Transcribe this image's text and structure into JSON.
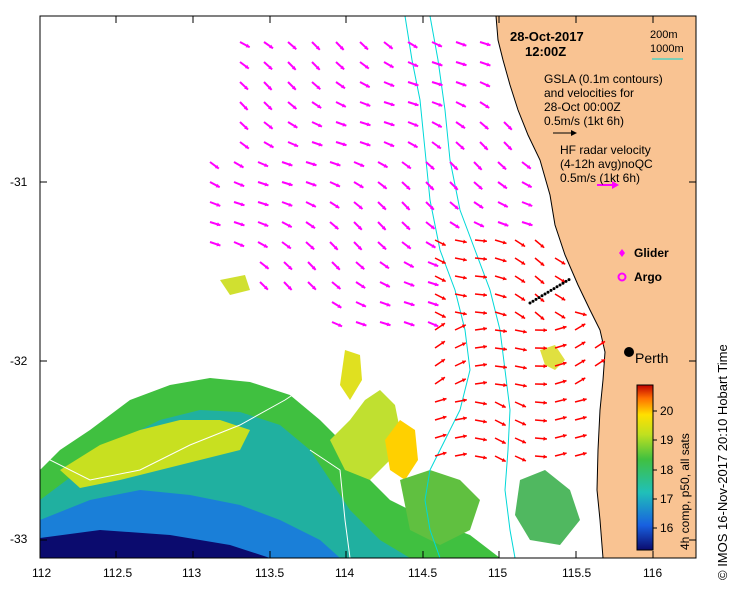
{
  "title": {
    "date": "28-Oct-2017",
    "time": "12:00Z"
  },
  "depth_legend": {
    "line1": "200m",
    "line2": "1000m"
  },
  "gsla_legend": {
    "line1": "GSLA (0.1m contours)",
    "line2": "and velocities for",
    "line3": "28-Oct 00:00Z",
    "scale": "0.5m/s (1kt 6h)"
  },
  "hf_legend": {
    "line1": "HF radar velocity",
    "line2": "(4-12h avg)noQC",
    "scale": "0.5m/s (1kt 6h)"
  },
  "glider_label": "Glider",
  "argo_label": "Argo",
  "city_label": "Perth",
  "x_ticks": [
    "112",
    "112.5",
    "113",
    "113.5",
    "114",
    "114.5",
    "115",
    "115.5",
    "116"
  ],
  "y_ticks": [
    "-31",
    "-32",
    "-33"
  ],
  "colorbar": {
    "title": "4h comp, p50, all sats",
    "ticks": [
      "20",
      "19",
      "18",
      "17",
      "16"
    ]
  },
  "credit": "© IMOS 16-Nov-2017 20:10 Hobart Time",
  "colors": {
    "land": "#f9c392",
    "hf_arrow": "#ff00ff",
    "gsla_arrow": "#ff0000",
    "isobath": "#00d8d8",
    "glider": "#000000"
  }
}
